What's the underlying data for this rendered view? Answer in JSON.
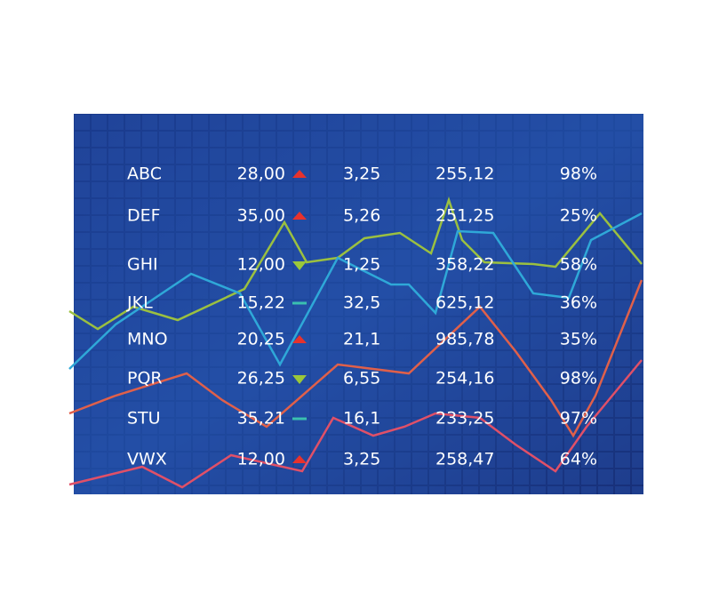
{
  "board": {
    "rows": [
      {
        "ticker": "ABC",
        "price": "28,00",
        "trend": "up",
        "change": "3,25",
        "value": "255,12",
        "percent": "98%"
      },
      {
        "ticker": "DEF",
        "price": "35,00",
        "trend": "up",
        "change": "5,26",
        "value": "251,25",
        "percent": "25%"
      },
      {
        "ticker": "GHI",
        "price": "12,00",
        "trend": "down",
        "change": "1,25",
        "value": "358,22",
        "percent": "58%"
      },
      {
        "ticker": "JKL",
        "price": "15,22",
        "trend": "flat",
        "change": "32,5",
        "value": "625,12",
        "percent": "36%"
      },
      {
        "ticker": "MNO",
        "price": "20,25",
        "trend": "up",
        "change": "21,1",
        "value": "985,78",
        "percent": "35%"
      },
      {
        "ticker": "PQR",
        "price": "26,25",
        "trend": "down",
        "change": "6,55",
        "value": "254,16",
        "percent": "98%"
      },
      {
        "ticker": "STU",
        "price": "35,21",
        "trend": "flat",
        "change": "16,1",
        "value": "233,25",
        "percent": "97%"
      },
      {
        "ticker": "VWX",
        "price": "12,00",
        "trend": "up",
        "change": "3,25",
        "value": "258,47",
        "percent": "64%"
      }
    ]
  }
}
